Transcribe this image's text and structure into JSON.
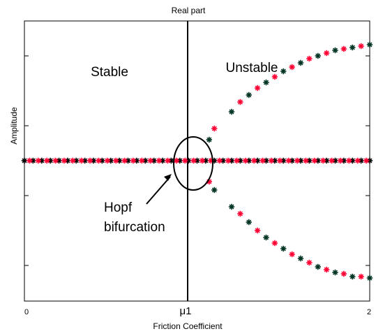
{
  "chart_data": {
    "type": "scatter",
    "title": "Real part",
    "xlabel": "Friction Coefficient",
    "ylabel": "Amplitude",
    "xlim": [
      0,
      2
    ],
    "ylim": [
      -1,
      1
    ],
    "x_tick_labels": [
      "0",
      "μ1",
      "2"
    ],
    "x_tick_values": [
      0,
      1,
      2
    ],
    "y_ticks": [
      -0.75,
      -0.25,
      0.25,
      0.75
    ],
    "grid": false,
    "legend": "none",
    "critical_x": 1,
    "series": [
      {
        "color": "#000000",
        "marker": "*",
        "branch": "trivial",
        "x": [
          0,
          0.05,
          0.1,
          0.15,
          0.2,
          0.25,
          0.3,
          0.35,
          0.4,
          0.45,
          0.5,
          0.55,
          0.6,
          0.65,
          0.7,
          0.75,
          0.8,
          0.85,
          0.9,
          0.95,
          1.0,
          1.05,
          1.1,
          1.15,
          1.2,
          1.25,
          1.3,
          1.35,
          1.4,
          1.45,
          1.5,
          1.55,
          1.6,
          1.65,
          1.7,
          1.75,
          1.8,
          1.85,
          1.9,
          1.95,
          2.0
        ],
        "y": [
          0,
          0,
          0,
          0,
          0,
          0,
          0,
          0,
          0,
          0,
          0,
          0,
          0,
          0,
          0,
          0,
          0,
          0,
          0,
          0,
          0,
          0,
          0,
          0,
          0,
          0,
          0,
          0,
          0,
          0,
          0,
          0,
          0,
          0,
          0,
          0,
          0,
          0,
          0,
          0,
          0
        ]
      },
      {
        "color": "#ff0033",
        "marker": "*",
        "branch": "trivial",
        "x": [
          0.03,
          0.08,
          0.13,
          0.18,
          0.23,
          0.28,
          0.33,
          0.38,
          0.43,
          0.48,
          0.53,
          0.58,
          0.63,
          0.68,
          0.73,
          0.78,
          0.83,
          0.88,
          0.93,
          0.98,
          1.03,
          1.08,
          1.13,
          1.18,
          1.23,
          1.28,
          1.33,
          1.38,
          1.43,
          1.48,
          1.53,
          1.58,
          1.63,
          1.68,
          1.73,
          1.78,
          1.83,
          1.88,
          1.93,
          1.98
        ],
        "y": [
          0,
          0,
          0,
          0,
          0,
          0,
          0,
          0,
          0,
          0,
          0,
          0,
          0,
          0,
          0,
          0,
          0,
          0,
          0,
          0,
          0,
          0,
          0,
          0,
          0,
          0,
          0,
          0,
          0,
          0,
          0,
          0,
          0,
          0,
          0,
          0,
          0,
          0,
          0,
          0
        ]
      },
      {
        "color": "#003322",
        "marker": "*",
        "branch": "upper",
        "x": [
          1.07,
          1.2,
          1.3,
          1.4,
          1.5,
          1.6,
          1.7,
          1.8,
          1.9,
          2.0
        ],
        "y": [
          0.15,
          0.35,
          0.47,
          0.56,
          0.64,
          0.7,
          0.75,
          0.79,
          0.81,
          0.83
        ]
      },
      {
        "color": "#ff0033",
        "marker": "*",
        "branch": "upper",
        "x": [
          1.1,
          1.25,
          1.35,
          1.45,
          1.55,
          1.65,
          1.75,
          1.85,
          1.95
        ],
        "y": [
          0.23,
          0.42,
          0.52,
          0.6,
          0.67,
          0.73,
          0.77,
          0.8,
          0.82
        ]
      },
      {
        "color": "#003322",
        "marker": "*",
        "branch": "lower",
        "x": [
          1.1,
          1.2,
          1.3,
          1.4,
          1.5,
          1.6,
          1.7,
          1.8,
          1.9,
          2.0
        ],
        "y": [
          -0.21,
          -0.33,
          -0.44,
          -0.55,
          -0.63,
          -0.7,
          -0.76,
          -0.8,
          -0.83,
          -0.84
        ]
      },
      {
        "color": "#ff0033",
        "marker": "*",
        "branch": "lower",
        "x": [
          1.07,
          1.25,
          1.35,
          1.45,
          1.55,
          1.65,
          1.75,
          1.85,
          1.95
        ],
        "y": [
          -0.15,
          -0.38,
          -0.5,
          -0.59,
          -0.67,
          -0.73,
          -0.78,
          -0.81,
          -0.83
        ]
      }
    ],
    "annotations": {
      "stable": "Stable",
      "unstable": "Unstable",
      "hopf_line1": "Hopf",
      "hopf_line2": "bifurcation"
    }
  }
}
